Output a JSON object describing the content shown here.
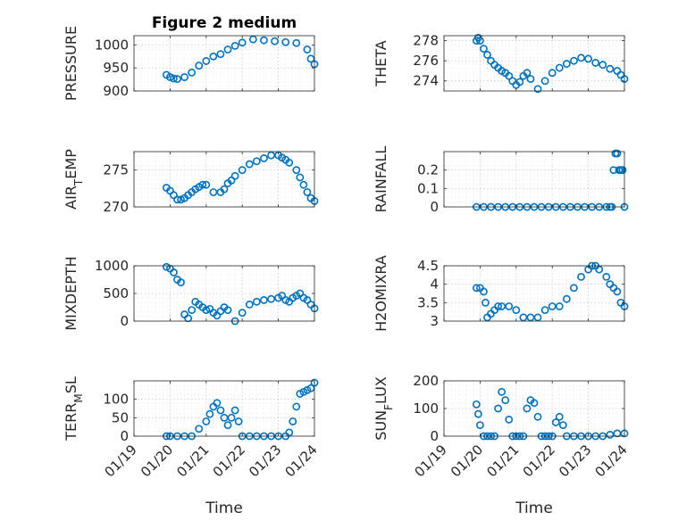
{
  "figure": {
    "title": "Figure 2 medium"
  },
  "chart_data": [
    {
      "type": "scatter",
      "name": "pressure-plot",
      "title": "Figure 2 medium",
      "ylabel": "PRESSURE",
      "ylim": [
        900,
        1020
      ],
      "yticks": [
        900,
        950,
        1000
      ],
      "ytick_labels": [
        "900",
        "",
        "1000"
      ],
      "yticks_major_labeled": [
        900,
        950,
        1000
      ],
      "xticks_visible": false,
      "x": [
        0.9,
        1.0,
        1.1,
        1.2,
        1.4,
        1.6,
        1.8,
        2.0,
        2.2,
        2.4,
        2.6,
        2.8,
        3.0,
        3.3,
        3.6,
        3.9,
        4.2,
        4.5,
        4.8,
        4.9,
        5.0
      ],
      "values": [
        935,
        930,
        927,
        926,
        930,
        940,
        955,
        965,
        975,
        980,
        990,
        998,
        1005,
        1012,
        1010,
        1008,
        1006,
        1004,
        990,
        970,
        958
      ],
      "color": "#0072BD"
    },
    {
      "type": "scatter",
      "name": "theta-plot",
      "ylabel": "THETA",
      "ylim": [
        273,
        278.5
      ],
      "yticks": [
        274,
        276,
        278
      ],
      "xticks_visible": false,
      "x": [
        0.9,
        0.95,
        1.0,
        1.1,
        1.2,
        1.3,
        1.4,
        1.5,
        1.6,
        1.7,
        1.8,
        1.9,
        2.0,
        2.1,
        2.2,
        2.3,
        2.4,
        2.6,
        2.8,
        3.0,
        3.2,
        3.4,
        3.6,
        3.8,
        4.0,
        4.2,
        4.4,
        4.6,
        4.8,
        4.9,
        5.0
      ],
      "values": [
        278,
        278.3,
        278.0,
        277.2,
        276.6,
        276.0,
        275.6,
        275.3,
        275.0,
        274.8,
        274.5,
        274.0,
        273.6,
        273.9,
        274.5,
        274.8,
        274.2,
        273.2,
        274.0,
        274.8,
        275.3,
        275.7,
        276.0,
        276.3,
        276.2,
        275.8,
        275.6,
        275.2,
        275.0,
        274.6,
        274.2
      ],
      "color": "#0072BD"
    },
    {
      "type": "scatter",
      "name": "air-temp-plot",
      "ylabel": "AIR_TEMP",
      "ylim": [
        270,
        277.5
      ],
      "yticks": [
        270,
        275
      ],
      "xticks_visible": false,
      "x": [
        0.9,
        1.0,
        1.1,
        1.2,
        1.3,
        1.4,
        1.5,
        1.6,
        1.7,
        1.8,
        1.9,
        2.0,
        2.2,
        2.4,
        2.5,
        2.6,
        2.7,
        2.8,
        3.0,
        3.2,
        3.4,
        3.6,
        3.8,
        4.0,
        4.1,
        4.2,
        4.3,
        4.5,
        4.6,
        4.7,
        4.8,
        4.9,
        5.0
      ],
      "values": [
        272.6,
        272.2,
        271.6,
        271.0,
        271.0,
        271.2,
        271.6,
        272.0,
        272.4,
        272.7,
        273.0,
        273.0,
        272.0,
        272.0,
        272.4,
        273.2,
        273.6,
        274.2,
        275.0,
        275.8,
        276.2,
        276.6,
        277.0,
        277.0,
        276.7,
        276.4,
        276.0,
        275.0,
        274.0,
        273.0,
        272.0,
        271.2,
        270.8
      ],
      "color": "#0072BD"
    },
    {
      "type": "scatter",
      "name": "rainfall-plot",
      "ylabel": "RAINFALL",
      "ylim": [
        0,
        0.3
      ],
      "yticks": [
        0,
        0.1,
        0.2
      ],
      "xticks_visible": false,
      "x": [
        0.9,
        1.1,
        1.3,
        1.5,
        1.7,
        1.9,
        2.1,
        2.3,
        2.5,
        2.7,
        2.9,
        3.1,
        3.3,
        3.5,
        3.7,
        3.9,
        4.1,
        4.3,
        4.5,
        4.6,
        4.65,
        4.7,
        4.75,
        4.8,
        4.85,
        4.9,
        4.95,
        5.0
      ],
      "values": [
        0,
        0,
        0,
        0,
        0,
        0,
        0,
        0,
        0,
        0,
        0,
        0,
        0,
        0,
        0,
        0,
        0,
        0,
        0,
        0,
        0,
        0.2,
        0.29,
        0.29,
        0.2,
        0.2,
        0.2,
        0
      ],
      "color": "#0072BD"
    },
    {
      "type": "scatter",
      "name": "mixdepth-plot",
      "ylabel": "MIXDEPTH",
      "ylim": [
        0,
        1000
      ],
      "yticks": [
        0,
        500,
        1000
      ],
      "xticks_visible": false,
      "x": [
        0.9,
        1.0,
        1.1,
        1.2,
        1.3,
        1.4,
        1.5,
        1.6,
        1.7,
        1.8,
        1.9,
        2.0,
        2.1,
        2.2,
        2.3,
        2.4,
        2.5,
        2.6,
        2.8,
        3.0,
        3.2,
        3.4,
        3.6,
        3.8,
        4.0,
        4.1,
        4.2,
        4.3,
        4.4,
        4.5,
        4.6,
        4.7,
        4.8,
        4.9,
        5.0
      ],
      "values": [
        980,
        950,
        880,
        750,
        700,
        120,
        50,
        200,
        350,
        300,
        250,
        200,
        220,
        150,
        100,
        180,
        250,
        200,
        0,
        150,
        300,
        350,
        380,
        400,
        420,
        460,
        380,
        350,
        420,
        460,
        500,
        420,
        380,
        300,
        230
      ],
      "color": "#0072BD"
    },
    {
      "type": "scatter",
      "name": "h2omixra-plot",
      "ylabel": "H2OMIXRA",
      "ylim": [
        3,
        4.5
      ],
      "yticks": [
        3,
        3.5,
        4,
        4.5
      ],
      "xticks_visible": false,
      "x": [
        0.9,
        1.0,
        1.1,
        1.15,
        1.2,
        1.3,
        1.4,
        1.5,
        1.6,
        1.8,
        2.0,
        2.2,
        2.4,
        2.6,
        2.8,
        3.0,
        3.2,
        3.4,
        3.6,
        3.8,
        4.0,
        4.1,
        4.2,
        4.3,
        4.5,
        4.6,
        4.7,
        4.8,
        4.9,
        5.0
      ],
      "values": [
        3.9,
        3.9,
        3.8,
        3.5,
        3.1,
        3.2,
        3.3,
        3.4,
        3.4,
        3.4,
        3.3,
        3.1,
        3.1,
        3.1,
        3.3,
        3.4,
        3.4,
        3.6,
        3.9,
        4.2,
        4.4,
        4.5,
        4.5,
        4.4,
        4.2,
        4.0,
        3.9,
        3.8,
        3.5,
        3.4
      ],
      "color": "#0072BD"
    },
    {
      "type": "scatter",
      "name": "terr-msl-plot",
      "ylabel": "TERR_MSL",
      "ylim": [
        0,
        150
      ],
      "yticks": [
        0,
        50,
        100
      ],
      "xticks_visible": true,
      "xticks": [
        "01/19",
        "01/20",
        "01/21",
        "01/22",
        "01/23",
        "01/24"
      ],
      "xlabel": "Time",
      "x": [
        0.9,
        1.0,
        1.2,
        1.4,
        1.6,
        1.8,
        2.0,
        2.1,
        2.2,
        2.3,
        2.4,
        2.5,
        2.6,
        2.7,
        2.8,
        2.9,
        3.0,
        3.2,
        3.4,
        3.6,
        3.8,
        4.0,
        4.2,
        4.3,
        4.4,
        4.5,
        4.6,
        4.7,
        4.8,
        4.9,
        5.0
      ],
      "values": [
        0,
        0,
        0,
        0,
        0,
        20,
        40,
        60,
        80,
        90,
        70,
        50,
        30,
        50,
        70,
        40,
        0,
        0,
        0,
        0,
        0,
        0,
        0,
        10,
        40,
        80,
        115,
        120,
        125,
        130,
        145
      ],
      "color": "#0072BD"
    },
    {
      "type": "scatter",
      "name": "sun-flux-plot",
      "ylabel": "SUN_FLUX",
      "ylim": [
        0,
        200
      ],
      "yticks": [
        0,
        100,
        200
      ],
      "xticks_visible": true,
      "xticks": [
        "01/19",
        "01/20",
        "01/21",
        "01/22",
        "01/23",
        "01/24"
      ],
      "xlabel": "Time",
      "x": [
        0.9,
        0.95,
        1.0,
        1.1,
        1.2,
        1.3,
        1.4,
        1.5,
        1.6,
        1.7,
        1.8,
        1.9,
        2.0,
        2.1,
        2.2,
        2.3,
        2.4,
        2.5,
        2.6,
        2.7,
        2.8,
        2.9,
        3.0,
        3.1,
        3.2,
        3.3,
        3.4,
        3.6,
        3.8,
        4.0,
        4.2,
        4.4,
        4.6,
        4.8,
        5.0
      ],
      "values": [
        115,
        80,
        40,
        0,
        0,
        0,
        0,
        100,
        160,
        130,
        60,
        0,
        0,
        0,
        0,
        100,
        130,
        120,
        70,
        0,
        0,
        0,
        0,
        50,
        70,
        40,
        0,
        0,
        0,
        0,
        0,
        0,
        5,
        10,
        10
      ],
      "color": "#0072BD"
    }
  ]
}
